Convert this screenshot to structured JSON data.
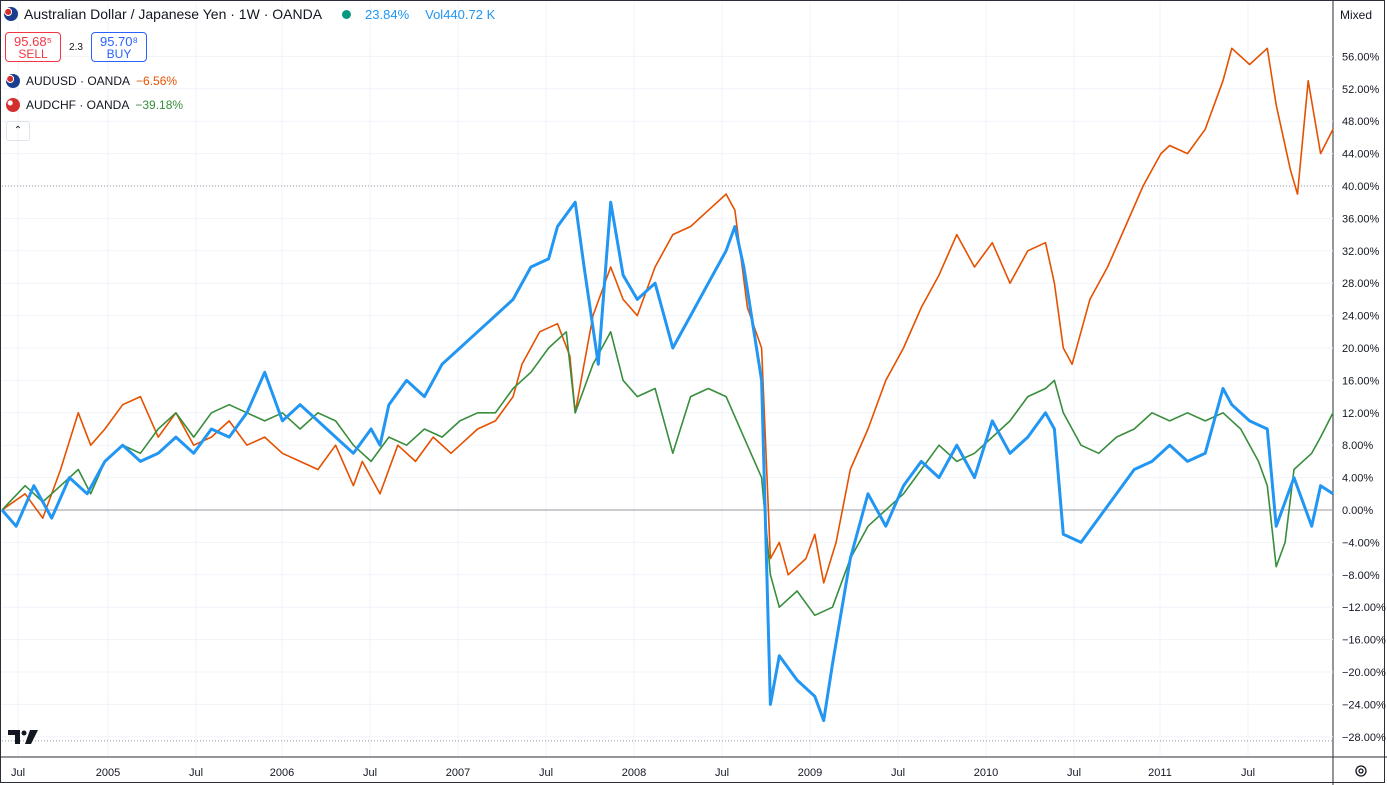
{
  "header": {
    "symbol_title": "Australian Dollar / Japanese Yen · 1W · OANDA",
    "change_pct": "23.84%",
    "volume_label": "Vol",
    "volume_value": "440.72 K"
  },
  "trade": {
    "sell_price": "95.68⁵",
    "sell_label": "SELL",
    "spread": "2.3",
    "buy_price": "95.70⁸",
    "buy_label": "BUY"
  },
  "compare": [
    {
      "symbol": "AUDUSD · OANDA",
      "change": "−6.56%",
      "color": "#e65100"
    },
    {
      "symbol": "AUDCHF · OANDA",
      "change": "−39.18%",
      "color": "#388e3c"
    }
  ],
  "controls": {
    "scale_mode": "Mixed",
    "collapse_icon": "chevron-up-icon",
    "settings_icon": "gear-icon"
  },
  "chart_data": {
    "type": "line",
    "x_ticks": [
      "Jul",
      "2005",
      "Jul",
      "2006",
      "Jul",
      "2007",
      "Jul",
      "2008",
      "Jul",
      "2009",
      "Jul",
      "2010",
      "Jul",
      "2011",
      "Jul"
    ],
    "y_ticks": [
      "56.00%",
      "52.00%",
      "48.00%",
      "44.00%",
      "40.00%",
      "36.00%",
      "32.00%",
      "28.00%",
      "24.00%",
      "20.00%",
      "16.00%",
      "12.00%",
      "8.00%",
      "4.00%",
      "0.00%",
      "−4.00%",
      "−8.00%",
      "−12.00%",
      "−16.00%",
      "−20.00%",
      "−24.00%",
      "−28.00%"
    ],
    "ylim": [
      -30,
      60
    ],
    "x_range": [
      2004.42,
      2011.92
    ],
    "series": [
      {
        "name": "AUDUSD · OANDA",
        "color": "#e65100",
        "points": [
          [
            2004.42,
            0
          ],
          [
            2004.55,
            2
          ],
          [
            2004.65,
            -1
          ],
          [
            2004.75,
            5
          ],
          [
            2004.85,
            12
          ],
          [
            2004.92,
            8
          ],
          [
            2005.0,
            10
          ],
          [
            2005.1,
            13
          ],
          [
            2005.2,
            14
          ],
          [
            2005.3,
            9
          ],
          [
            2005.4,
            12
          ],
          [
            2005.5,
            8
          ],
          [
            2005.6,
            9
          ],
          [
            2005.7,
            11
          ],
          [
            2005.8,
            8
          ],
          [
            2005.9,
            9
          ],
          [
            2006.0,
            7
          ],
          [
            2006.1,
            6
          ],
          [
            2006.2,
            5
          ],
          [
            2006.3,
            8
          ],
          [
            2006.4,
            3
          ],
          [
            2006.45,
            6
          ],
          [
            2006.55,
            2
          ],
          [
            2006.65,
            8
          ],
          [
            2006.75,
            6
          ],
          [
            2006.85,
            9
          ],
          [
            2006.95,
            7
          ],
          [
            2007.0,
            8
          ],
          [
            2007.1,
            10
          ],
          [
            2007.2,
            11
          ],
          [
            2007.3,
            14
          ],
          [
            2007.35,
            18
          ],
          [
            2007.45,
            22
          ],
          [
            2007.55,
            23
          ],
          [
            2007.62,
            19
          ],
          [
            2007.65,
            12
          ],
          [
            2007.75,
            24
          ],
          [
            2007.85,
            30
          ],
          [
            2007.92,
            26
          ],
          [
            2008.0,
            24
          ],
          [
            2008.1,
            30
          ],
          [
            2008.2,
            34
          ],
          [
            2008.3,
            35
          ],
          [
            2008.4,
            37
          ],
          [
            2008.5,
            39
          ],
          [
            2008.55,
            37
          ],
          [
            2008.62,
            25
          ],
          [
            2008.7,
            20
          ],
          [
            2008.75,
            -6
          ],
          [
            2008.8,
            -4
          ],
          [
            2008.85,
            -8
          ],
          [
            2008.95,
            -6
          ],
          [
            2009.0,
            -3
          ],
          [
            2009.05,
            -9
          ],
          [
            2009.12,
            -4
          ],
          [
            2009.2,
            5
          ],
          [
            2009.3,
            10
          ],
          [
            2009.4,
            16
          ],
          [
            2009.5,
            20
          ],
          [
            2009.6,
            25
          ],
          [
            2009.7,
            29
          ],
          [
            2009.8,
            34
          ],
          [
            2009.9,
            30
          ],
          [
            2010.0,
            33
          ],
          [
            2010.1,
            28
          ],
          [
            2010.2,
            32
          ],
          [
            2010.3,
            33
          ],
          [
            2010.35,
            28
          ],
          [
            2010.4,
            20
          ],
          [
            2010.45,
            18
          ],
          [
            2010.55,
            26
          ],
          [
            2010.65,
            30
          ],
          [
            2010.75,
            35
          ],
          [
            2010.85,
            40
          ],
          [
            2010.95,
            44
          ],
          [
            2011.0,
            45
          ],
          [
            2011.1,
            44
          ],
          [
            2011.2,
            47
          ],
          [
            2011.3,
            53
          ],
          [
            2011.35,
            57
          ],
          [
            2011.45,
            55
          ],
          [
            2011.55,
            57
          ],
          [
            2011.6,
            50
          ],
          [
            2011.68,
            42
          ],
          [
            2011.72,
            39
          ],
          [
            2011.78,
            53
          ],
          [
            2011.85,
            44
          ],
          [
            2011.92,
            47
          ]
        ]
      },
      {
        "name": "AUDCHF · OANDA",
        "color": "#388e3c",
        "points": [
          [
            2004.42,
            0
          ],
          [
            2004.55,
            3
          ],
          [
            2004.65,
            1
          ],
          [
            2004.75,
            3
          ],
          [
            2004.85,
            5
          ],
          [
            2004.92,
            2
          ],
          [
            2005.0,
            6
          ],
          [
            2005.1,
            8
          ],
          [
            2005.2,
            7
          ],
          [
            2005.3,
            10
          ],
          [
            2005.4,
            12
          ],
          [
            2005.5,
            9
          ],
          [
            2005.6,
            12
          ],
          [
            2005.7,
            13
          ],
          [
            2005.8,
            12
          ],
          [
            2005.9,
            11
          ],
          [
            2006.0,
            12
          ],
          [
            2006.1,
            10
          ],
          [
            2006.2,
            12
          ],
          [
            2006.3,
            11
          ],
          [
            2006.4,
            8
          ],
          [
            2006.5,
            6
          ],
          [
            2006.6,
            9
          ],
          [
            2006.7,
            8
          ],
          [
            2006.8,
            10
          ],
          [
            2006.9,
            9
          ],
          [
            2007.0,
            11
          ],
          [
            2007.1,
            12
          ],
          [
            2007.2,
            12
          ],
          [
            2007.3,
            15
          ],
          [
            2007.4,
            17
          ],
          [
            2007.5,
            20
          ],
          [
            2007.6,
            22
          ],
          [
            2007.65,
            12
          ],
          [
            2007.75,
            18
          ],
          [
            2007.85,
            22
          ],
          [
            2007.92,
            16
          ],
          [
            2008.0,
            14
          ],
          [
            2008.1,
            15
          ],
          [
            2008.2,
            7
          ],
          [
            2008.3,
            14
          ],
          [
            2008.4,
            15
          ],
          [
            2008.5,
            14
          ],
          [
            2008.6,
            9
          ],
          [
            2008.7,
            4
          ],
          [
            2008.75,
            -8
          ],
          [
            2008.8,
            -12
          ],
          [
            2008.9,
            -10
          ],
          [
            2009.0,
            -13
          ],
          [
            2009.1,
            -12
          ],
          [
            2009.2,
            -6
          ],
          [
            2009.3,
            -2
          ],
          [
            2009.4,
            0
          ],
          [
            2009.5,
            2
          ],
          [
            2009.6,
            5
          ],
          [
            2009.7,
            8
          ],
          [
            2009.8,
            6
          ],
          [
            2009.9,
            7
          ],
          [
            2010.0,
            9
          ],
          [
            2010.1,
            11
          ],
          [
            2010.2,
            14
          ],
          [
            2010.3,
            15
          ],
          [
            2010.35,
            16
          ],
          [
            2010.4,
            12
          ],
          [
            2010.5,
            8
          ],
          [
            2010.6,
            7
          ],
          [
            2010.7,
            9
          ],
          [
            2010.8,
            10
          ],
          [
            2010.9,
            12
          ],
          [
            2011.0,
            11
          ],
          [
            2011.1,
            12
          ],
          [
            2011.2,
            11
          ],
          [
            2011.3,
            12
          ],
          [
            2011.4,
            10
          ],
          [
            2011.5,
            6
          ],
          [
            2011.55,
            3
          ],
          [
            2011.6,
            -7
          ],
          [
            2011.65,
            -4
          ],
          [
            2011.7,
            5
          ],
          [
            2011.8,
            7
          ],
          [
            2011.85,
            9
          ],
          [
            2011.92,
            12
          ]
        ]
      },
      {
        "name": "Australian Dollar / Japanese Yen · 1W · OANDA",
        "color": "#2196f3",
        "points": [
          [
            2004.42,
            0
          ],
          [
            2004.5,
            -2
          ],
          [
            2004.6,
            3
          ],
          [
            2004.7,
            -1
          ],
          [
            2004.8,
            4
          ],
          [
            2004.9,
            2
          ],
          [
            2005.0,
            6
          ],
          [
            2005.1,
            8
          ],
          [
            2005.2,
            6
          ],
          [
            2005.3,
            7
          ],
          [
            2005.4,
            9
          ],
          [
            2005.5,
            7
          ],
          [
            2005.6,
            10
          ],
          [
            2005.7,
            9
          ],
          [
            2005.8,
            12
          ],
          [
            2005.9,
            17
          ],
          [
            2006.0,
            11
          ],
          [
            2006.1,
            13
          ],
          [
            2006.2,
            11
          ],
          [
            2006.3,
            9
          ],
          [
            2006.4,
            7
          ],
          [
            2006.5,
            10
          ],
          [
            2006.55,
            8
          ],
          [
            2006.6,
            13
          ],
          [
            2006.7,
            16
          ],
          [
            2006.8,
            14
          ],
          [
            2006.9,
            18
          ],
          [
            2007.0,
            20
          ],
          [
            2007.1,
            22
          ],
          [
            2007.2,
            24
          ],
          [
            2007.3,
            26
          ],
          [
            2007.4,
            30
          ],
          [
            2007.5,
            31
          ],
          [
            2007.55,
            35
          ],
          [
            2007.65,
            38
          ],
          [
            2007.7,
            30
          ],
          [
            2007.78,
            18
          ],
          [
            2007.85,
            38
          ],
          [
            2007.92,
            29
          ],
          [
            2008.0,
            26
          ],
          [
            2008.1,
            28
          ],
          [
            2008.15,
            24
          ],
          [
            2008.2,
            20
          ],
          [
            2008.3,
            24
          ],
          [
            2008.4,
            28
          ],
          [
            2008.5,
            32
          ],
          [
            2008.55,
            35
          ],
          [
            2008.6,
            30
          ],
          [
            2008.7,
            16
          ],
          [
            2008.75,
            -24
          ],
          [
            2008.8,
            -18
          ],
          [
            2008.9,
            -21
          ],
          [
            2009.0,
            -23
          ],
          [
            2009.05,
            -26
          ],
          [
            2009.1,
            -19
          ],
          [
            2009.2,
            -6
          ],
          [
            2009.3,
            2
          ],
          [
            2009.4,
            -2
          ],
          [
            2009.5,
            3
          ],
          [
            2009.6,
            6
          ],
          [
            2009.7,
            4
          ],
          [
            2009.8,
            8
          ],
          [
            2009.9,
            4
          ],
          [
            2010.0,
            11
          ],
          [
            2010.1,
            7
          ],
          [
            2010.2,
            9
          ],
          [
            2010.3,
            12
          ],
          [
            2010.35,
            10
          ],
          [
            2010.4,
            -3
          ],
          [
            2010.5,
            -4
          ],
          [
            2010.6,
            -1
          ],
          [
            2010.7,
            2
          ],
          [
            2010.8,
            5
          ],
          [
            2010.9,
            6
          ],
          [
            2011.0,
            8
          ],
          [
            2011.1,
            6
          ],
          [
            2011.2,
            7
          ],
          [
            2011.3,
            15
          ],
          [
            2011.35,
            13
          ],
          [
            2011.45,
            11
          ],
          [
            2011.55,
            10
          ],
          [
            2011.6,
            -2
          ],
          [
            2011.65,
            1
          ],
          [
            2011.7,
            4
          ],
          [
            2011.8,
            -2
          ],
          [
            2011.85,
            3
          ],
          [
            2011.92,
            2
          ]
        ]
      }
    ]
  }
}
